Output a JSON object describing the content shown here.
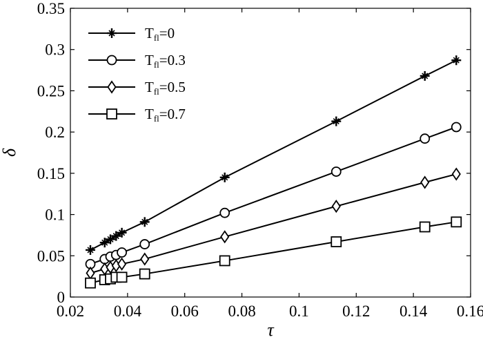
{
  "chart_data": {
    "type": "line",
    "title": "",
    "xlabel": "τ",
    "ylabel": "δ",
    "xlim": [
      0.02,
      0.16
    ],
    "ylim": [
      0,
      0.35
    ],
    "xticks": [
      0.02,
      0.04,
      0.06,
      0.08,
      0.1,
      0.12,
      0.14,
      0.16
    ],
    "xtick_labels": [
      "0.02",
      "0.04",
      "0.06",
      "0.08",
      "0.1",
      "0.12",
      "0.14",
      "0.16"
    ],
    "yticks": [
      0,
      0.05,
      0.1,
      0.15,
      0.2,
      0.25,
      0.3,
      0.35
    ],
    "ytick_labels": [
      "0",
      "0.05",
      "0.1",
      "0.15",
      "0.2",
      "0.25",
      "0.3",
      "0.35"
    ],
    "grid": false,
    "legend_position": "top-left",
    "x": [
      0.027,
      0.032,
      0.034,
      0.036,
      0.038,
      0.046,
      0.074,
      0.113,
      0.144,
      0.155
    ],
    "series": [
      {
        "name": "T_fl=0",
        "legend_main": "T",
        "legend_sub": "fl",
        "legend_value": "=0",
        "marker": "plus",
        "values": [
          0.057,
          0.066,
          0.07,
          0.074,
          0.078,
          0.091,
          0.145,
          0.213,
          0.268,
          0.287
        ]
      },
      {
        "name": "T_fl=0.3",
        "legend_main": "T",
        "legend_sub": "fl",
        "legend_value": "=0.3",
        "marker": "circle",
        "values": [
          0.04,
          0.046,
          0.049,
          0.051,
          0.054,
          0.064,
          0.102,
          0.152,
          0.192,
          0.206
        ]
      },
      {
        "name": "T_fl=0.5",
        "legend_main": "T",
        "legend_sub": "fl",
        "legend_value": "=0.5",
        "marker": "diamond",
        "values": [
          0.029,
          0.034,
          0.036,
          0.038,
          0.04,
          0.046,
          0.073,
          0.11,
          0.139,
          0.149
        ]
      },
      {
        "name": "T_fl=0.7",
        "legend_main": "T",
        "legend_sub": "fl",
        "legend_value": "=0.7",
        "marker": "square",
        "values": [
          0.017,
          0.021,
          0.022,
          0.024,
          0.024,
          0.028,
          0.044,
          0.067,
          0.085,
          0.091
        ]
      }
    ]
  }
}
